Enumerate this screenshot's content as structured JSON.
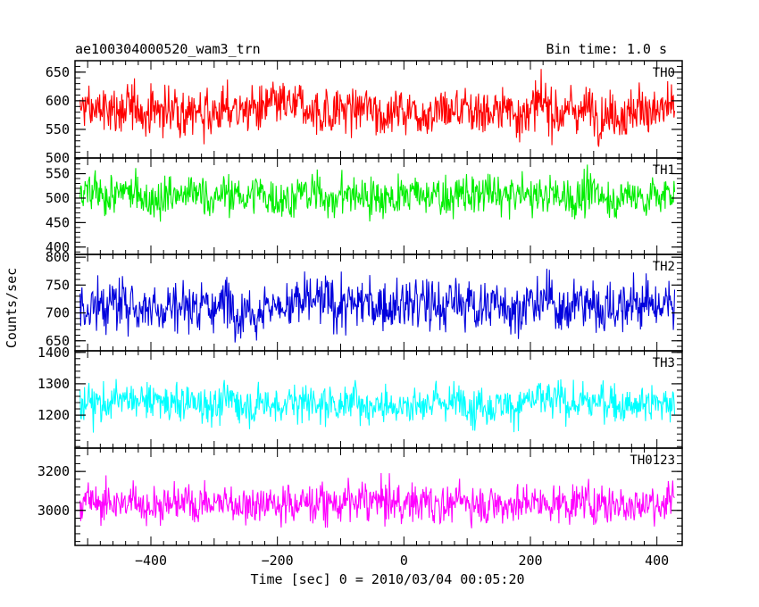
{
  "header": {
    "left_title": "ae100304000520_wam3_trn",
    "right_title": "Bin time: 1.0 s"
  },
  "chart_data": {
    "type": "line",
    "xlabel": "Time [sec] 0 = 2010/03/04 00:05:20",
    "ylabel": "Counts/sec",
    "xlim": [
      -520,
      440
    ],
    "x_range_data": [
      -512,
      428
    ],
    "bin_time_s": 1.0,
    "x_ticks": [
      -400,
      -200,
      0,
      200,
      400
    ],
    "x_tick_labels": [
      "−400",
      "−200",
      "0",
      "200",
      "400"
    ],
    "panels": [
      {
        "name": "TH0",
        "color": "#ff0000",
        "ylim": [
          500,
          670
        ],
        "y_ticks": [
          500,
          550,
          600,
          650
        ],
        "y_tick_labels": [
          "500",
          "550",
          "600",
          "650"
        ],
        "mean": 584,
        "spread": 24
      },
      {
        "name": "TH1",
        "color": "#00ee00",
        "ylim": [
          385,
          582
        ],
        "y_ticks": [
          400,
          450,
          500,
          550
        ],
        "y_tick_labels": [
          "400",
          "450",
          "500",
          "550"
        ],
        "mean": 505,
        "spread": 24
      },
      {
        "name": "TH2",
        "color": "#0000dd",
        "ylim": [
          632,
          805
        ],
        "y_ticks": [
          650,
          700,
          750,
          800
        ],
        "y_tick_labels": [
          "650",
          "700",
          "750",
          "800"
        ],
        "mean": 715,
        "spread": 27
      },
      {
        "name": "TH3",
        "color": "#00ffff",
        "ylim": [
          1095,
          1405
        ],
        "y_ticks": [
          1200,
          1300,
          1400
        ],
        "y_tick_labels": [
          "1200",
          "1300",
          "1400"
        ],
        "mean": 1240,
        "spread": 36
      },
      {
        "name": "TH0123",
        "color": "#ff00ff",
        "ylim": [
          2820,
          3320
        ],
        "y_ticks": [
          3000,
          3200
        ],
        "y_tick_labels": [
          "3000",
          "3200"
        ],
        "mean": 3040,
        "spread": 58
      }
    ]
  }
}
